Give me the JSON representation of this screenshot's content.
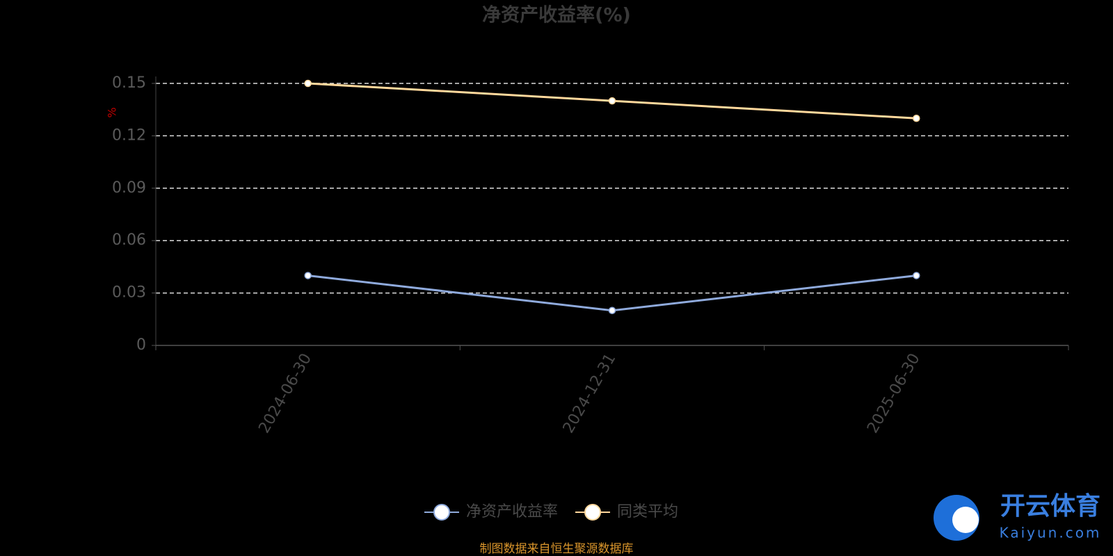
{
  "chart_data": {
    "type": "line",
    "title": "净资产收益率(%)",
    "y_label": "%",
    "categories": [
      "2024-06-30",
      "2024-12-31",
      "2025-06-30"
    ],
    "series": [
      {
        "name": "净资产收益率",
        "color": "#8faadc",
        "values": [
          0.04,
          0.02,
          0.04
        ]
      },
      {
        "name": "同类平均",
        "color": "#ffd89c",
        "values": [
          0.15,
          0.14,
          0.13
        ]
      }
    ],
    "ylim": [
      0,
      0.15
    ],
    "yticks": [
      0,
      0.03,
      0.06,
      0.09,
      0.12,
      0.15
    ],
    "grid": true,
    "legend": "bottom",
    "source": "制图数据来自恒生聚源数据库"
  },
  "watermark": {
    "name": "开云体育",
    "url": "Kaiyun.com"
  }
}
